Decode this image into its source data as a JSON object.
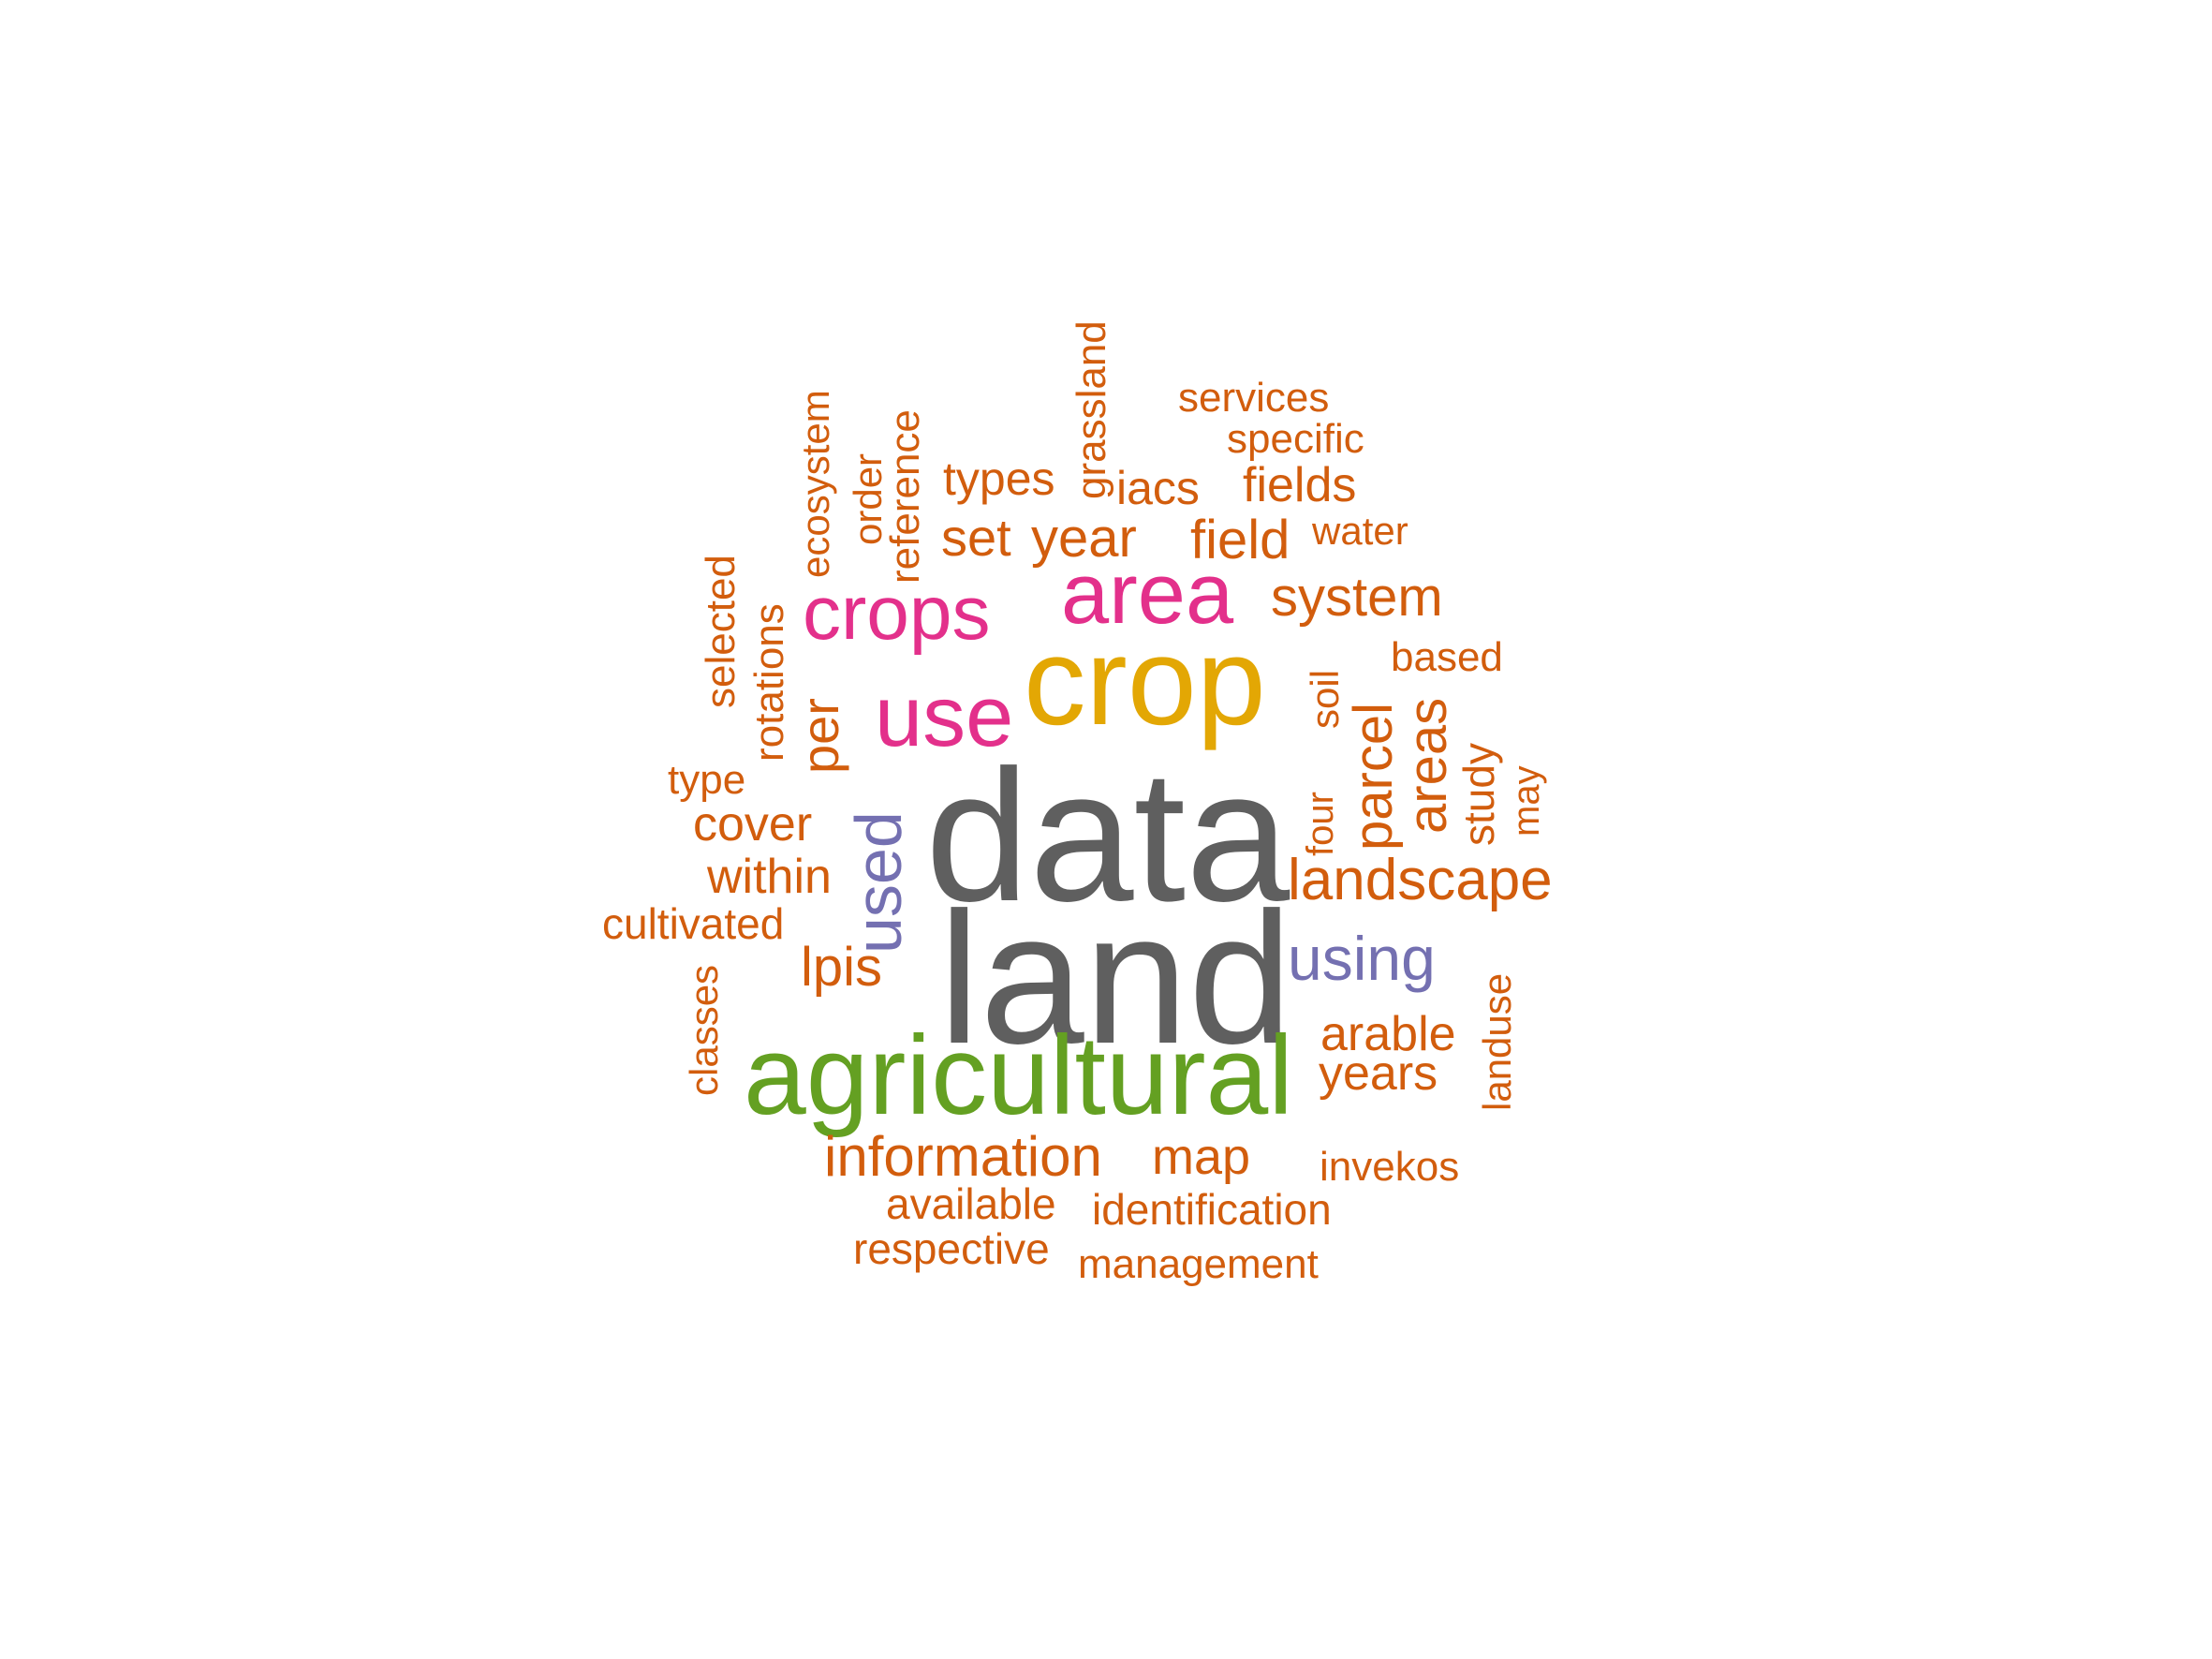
{
  "colors": {
    "background": "#ffffff",
    "gray": "#5f5f5f",
    "green": "#64a022",
    "gold": "#e3a704",
    "magenta": "#e3308b",
    "purple": "#7470b1",
    "orange": "#d25d0d"
  },
  "words": [
    {
      "text": "data",
      "color": "gray"
    },
    {
      "text": "land",
      "color": "gray"
    },
    {
      "text": "agricultural",
      "color": "green"
    },
    {
      "text": "crop",
      "color": "gold"
    },
    {
      "text": "area",
      "color": "magenta"
    },
    {
      "text": "crops",
      "color": "magenta"
    },
    {
      "text": "use",
      "color": "magenta"
    },
    {
      "text": "used",
      "color": "purple"
    },
    {
      "text": "using",
      "color": "purple"
    },
    {
      "text": "landscape",
      "color": "orange"
    },
    {
      "text": "information",
      "color": "orange"
    },
    {
      "text": "system",
      "color": "orange"
    },
    {
      "text": "parcel",
      "color": "orange"
    },
    {
      "text": "areas",
      "color": "orange"
    },
    {
      "text": "year",
      "color": "orange"
    },
    {
      "text": "field",
      "color": "orange"
    },
    {
      "text": "set",
      "color": "orange"
    },
    {
      "text": "fields",
      "color": "orange"
    },
    {
      "text": "types",
      "color": "orange"
    },
    {
      "text": "iacs",
      "color": "orange"
    },
    {
      "text": "cover",
      "color": "orange"
    },
    {
      "text": "within",
      "color": "orange"
    },
    {
      "text": "lpis",
      "color": "orange"
    },
    {
      "text": "per",
      "color": "orange"
    },
    {
      "text": "map",
      "color": "orange"
    },
    {
      "text": "arable",
      "color": "orange"
    },
    {
      "text": "years",
      "color": "orange"
    },
    {
      "text": "available",
      "color": "orange"
    },
    {
      "text": "identification",
      "color": "orange"
    },
    {
      "text": "respective",
      "color": "orange"
    },
    {
      "text": "management",
      "color": "orange"
    },
    {
      "text": "invekos",
      "color": "orange"
    },
    {
      "text": "cultivated",
      "color": "orange"
    },
    {
      "text": "type",
      "color": "orange"
    },
    {
      "text": "based",
      "color": "orange"
    },
    {
      "text": "water",
      "color": "orange"
    },
    {
      "text": "services",
      "color": "orange"
    },
    {
      "text": "specific",
      "color": "orange"
    },
    {
      "text": "grassland",
      "color": "orange"
    },
    {
      "text": "reference",
      "color": "orange"
    },
    {
      "text": "order",
      "color": "orange"
    },
    {
      "text": "ecosystem",
      "color": "orange"
    },
    {
      "text": "selected",
      "color": "orange"
    },
    {
      "text": "rotations",
      "color": "orange"
    },
    {
      "text": "soil",
      "color": "orange"
    },
    {
      "text": "four",
      "color": "orange"
    },
    {
      "text": "study",
      "color": "orange"
    },
    {
      "text": "may",
      "color": "orange"
    },
    {
      "text": "classes",
      "color": "orange"
    },
    {
      "text": "landuse",
      "color": "orange"
    }
  ]
}
